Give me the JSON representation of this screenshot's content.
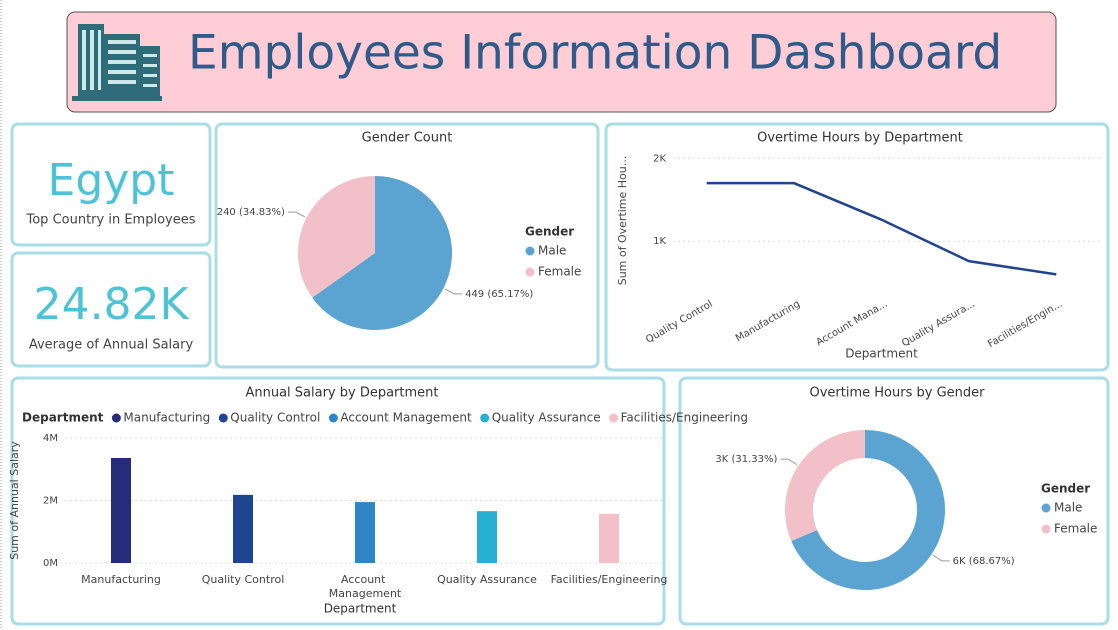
{
  "header": {
    "title": "Employees Information Dashboard"
  },
  "cards": [
    {
      "value": "Egypt",
      "label": "Top Country in Employees"
    },
    {
      "value": "24.82K",
      "label": "Average of Annual Salary"
    }
  ],
  "chart_data": [
    {
      "type": "pie",
      "title": "Gender Count",
      "legend_title": "Gender",
      "categories": [
        "Male",
        "Female"
      ],
      "values": [
        449,
        240
      ],
      "value_labels": [
        "449 (65.17%)",
        "240 (34.83%)"
      ],
      "colors": [
        "#5ba3d0",
        "#f2c0c8"
      ]
    },
    {
      "type": "line",
      "title": "Overtime Hours by Department",
      "x_label": "Department",
      "y_label": "Sum of Overtime Hou...",
      "categories": [
        "Quality Control",
        "Manufacturing",
        "Account Mana...",
        "Quality Assura...",
        "Facilities/Engin..."
      ],
      "values": [
        1700,
        1700,
        1260,
        760,
        600
      ],
      "color": "#1f4590",
      "ylim": [
        400,
        2100
      ],
      "yticks": [
        {
          "value": 1000,
          "label": "1K"
        },
        {
          "value": 2000,
          "label": "2K"
        }
      ],
      "grid": true
    },
    {
      "type": "bar",
      "title": "Annual Salary by Department",
      "legend_title": "Department",
      "x_label": "Department",
      "y_label": "Sum of Annual Salary",
      "categories": [
        "Manufacturing",
        "Quality Control",
        "Account Management",
        "Quality Assurance",
        "Facilities/Engineering"
      ],
      "values": [
        3360000,
        2180000,
        1950000,
        1660000,
        1570000
      ],
      "colors": [
        "#272c7a",
        "#1f4590",
        "#2f86c7",
        "#29b1d5",
        "#f4c0c8"
      ],
      "ylim": [
        0,
        4000000
      ],
      "yticks": [
        {
          "value": 0,
          "label": "0M"
        },
        {
          "value": 2000000,
          "label": "2M"
        },
        {
          "value": 4000000,
          "label": "4M"
        }
      ],
      "grid": true
    },
    {
      "type": "donut",
      "title": "Overtime Hours by Gender",
      "legend_title": "Gender",
      "categories": [
        "Male",
        "Female"
      ],
      "values": [
        6000,
        2737
      ],
      "value_labels": [
        "6K (68.67%)",
        "3K (31.33%)"
      ],
      "colors": [
        "#5ba3d0",
        "#f2c0c8"
      ]
    }
  ]
}
